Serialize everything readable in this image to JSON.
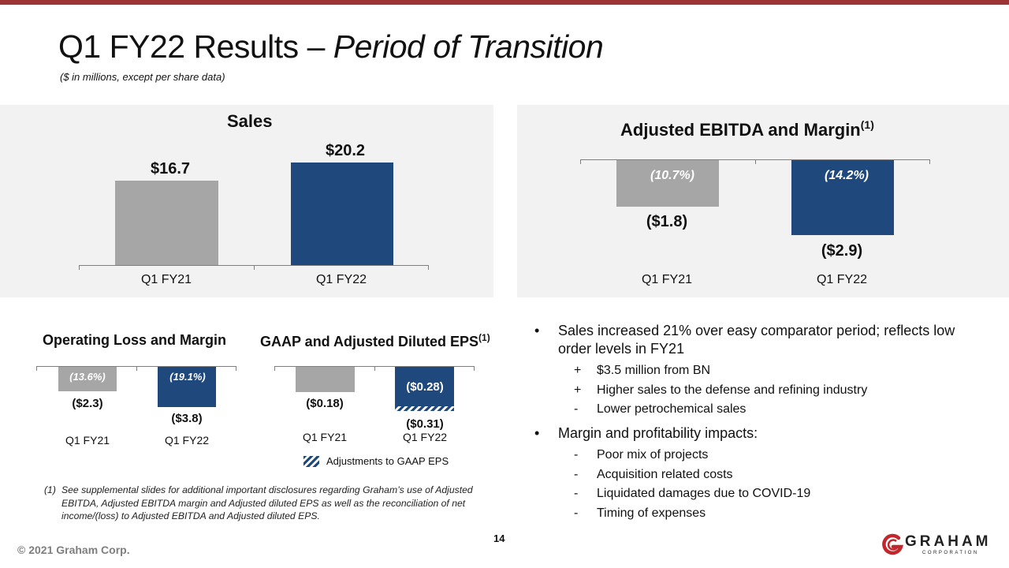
{
  "header": {
    "title_main": "Q1 FY22 Results – ",
    "title_italic": "Period of Transition",
    "subtitle": "($ in millions, except per share data)"
  },
  "sales_chart": {
    "title": "Sales",
    "categories": [
      "Q1 FY21",
      "Q1 FY22"
    ],
    "value_labels": [
      "$16.7",
      "$20.2"
    ]
  },
  "ebitda_chart": {
    "title": "Adjusted EBITDA and Margin",
    "title_sup": "(1)",
    "categories": [
      "Q1 FY21",
      "Q1 FY22"
    ],
    "value_labels": [
      "($1.8)",
      "($2.9)"
    ],
    "margin_labels": [
      "(10.7%)",
      "(14.2%)"
    ]
  },
  "oploss_chart": {
    "title": "Operating Loss and Margin",
    "categories": [
      "Q1 FY21",
      "Q1 FY22"
    ],
    "value_labels": [
      "($2.3)",
      "($3.8)"
    ],
    "margin_labels": [
      "(13.6%)",
      "(19.1%)"
    ]
  },
  "eps_chart": {
    "title": "GAAP and Adjusted Diluted EPS",
    "title_sup": "(1)",
    "categories": [
      "Q1 FY21",
      "Q1 FY22"
    ],
    "value_labels": [
      "($0.18)",
      "($0.31)"
    ],
    "adjusted_label": "($0.28)",
    "legend": "Adjustments to GAAP EPS"
  },
  "chart_data": [
    {
      "type": "bar",
      "title": "Sales",
      "categories": [
        "Q1 FY21",
        "Q1 FY22"
      ],
      "values": [
        16.7,
        20.2
      ],
      "unit": "$M"
    },
    {
      "type": "bar",
      "title": "Adjusted EBITDA and Margin",
      "categories": [
        "Q1 FY21",
        "Q1 FY22"
      ],
      "values": [
        -1.8,
        -2.9
      ],
      "margins_pct": [
        -10.7,
        -14.2
      ],
      "unit": "$M"
    },
    {
      "type": "bar",
      "title": "Operating Loss and Margin",
      "categories": [
        "Q1 FY21",
        "Q1 FY22"
      ],
      "values": [
        -2.3,
        -3.8
      ],
      "margins_pct": [
        -13.6,
        -19.1
      ],
      "unit": "$M"
    },
    {
      "type": "bar",
      "title": "GAAP and Adjusted Diluted EPS",
      "categories": [
        "Q1 FY21",
        "Q1 FY22"
      ],
      "series": [
        {
          "name": "GAAP EPS",
          "values": [
            -0.18,
            -0.31
          ]
        },
        {
          "name": "Adjusted EPS",
          "values": [
            null,
            -0.28
          ]
        }
      ],
      "legend": [
        "Adjustments to GAAP EPS"
      ],
      "unit": "$"
    }
  ],
  "footnote": {
    "num": "(1)",
    "text": "See supplemental slides for additional important disclosures regarding Graham’s use of Adjusted EBITDA, Adjusted EBITDA margin and Adjusted diluted EPS as well as the reconciliation of net income/(loss) to Adjusted EBITDA and Adjusted diluted EPS."
  },
  "bullets": [
    {
      "mark": "•",
      "text": "Sales increased 21% over easy comparator period; reflects low order levels in FY21",
      "subs": [
        {
          "mark": "+",
          "text": "$3.5 million from BN"
        },
        {
          "mark": "+",
          "text": "Higher sales to the defense and refining industry"
        },
        {
          "mark": "-",
          "text": "Lower petrochemical sales"
        }
      ]
    },
    {
      "mark": "•",
      "text": "Margin and profitability impacts:",
      "subs": [
        {
          "mark": "-",
          "text": "Poor mix of projects"
        },
        {
          "mark": "-",
          "text": "Acquisition related costs"
        },
        {
          "mark": "-",
          "text": "Liquidated damages due to COVID-19"
        },
        {
          "mark": "-",
          "text": "Timing of expenses"
        }
      ]
    }
  ],
  "footer": {
    "page_number": "14",
    "copyright": "© 2021 Graham Corp.",
    "logo_word": "GRAHAM",
    "logo_sub": "CORPORATION"
  }
}
